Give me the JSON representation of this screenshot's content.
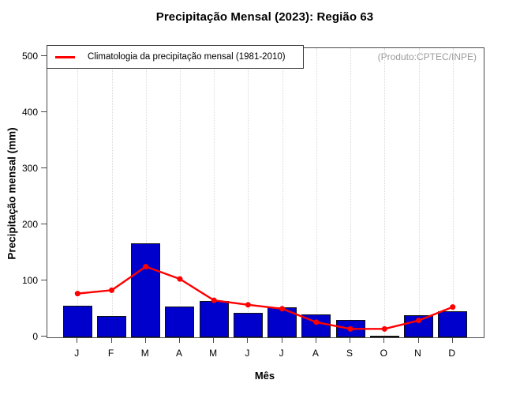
{
  "chart_data": {
    "type": "bar",
    "title": "Precipitação Mensal (2023): Região 63",
    "xlabel": "Mês",
    "ylabel": "Precipitação mensal (mm)",
    "annotation": "(Produto:CPTEC/INPE)",
    "categories": [
      "J",
      "F",
      "M",
      "A",
      "M",
      "J",
      "J",
      "A",
      "S",
      "O",
      "N",
      "D"
    ],
    "series": [
      {
        "type": "bar",
        "color": "#0000cd",
        "values": [
          57,
          38,
          168,
          55,
          65,
          44,
          53,
          41,
          31,
          2,
          40,
          47
        ]
      },
      {
        "name": "Climatologia da precipitação mensal (1981-2010)",
        "type": "line",
        "color": "#ff0000",
        "values": [
          78,
          84,
          126,
          104,
          66,
          58,
          51,
          27,
          15,
          15,
          30,
          54
        ]
      }
    ],
    "ylim": [
      0,
      500
    ],
    "yticks": [
      0,
      100,
      200,
      300,
      400,
      500
    ],
    "grid": "vertical-dotted",
    "legend_position": "top-left"
  }
}
